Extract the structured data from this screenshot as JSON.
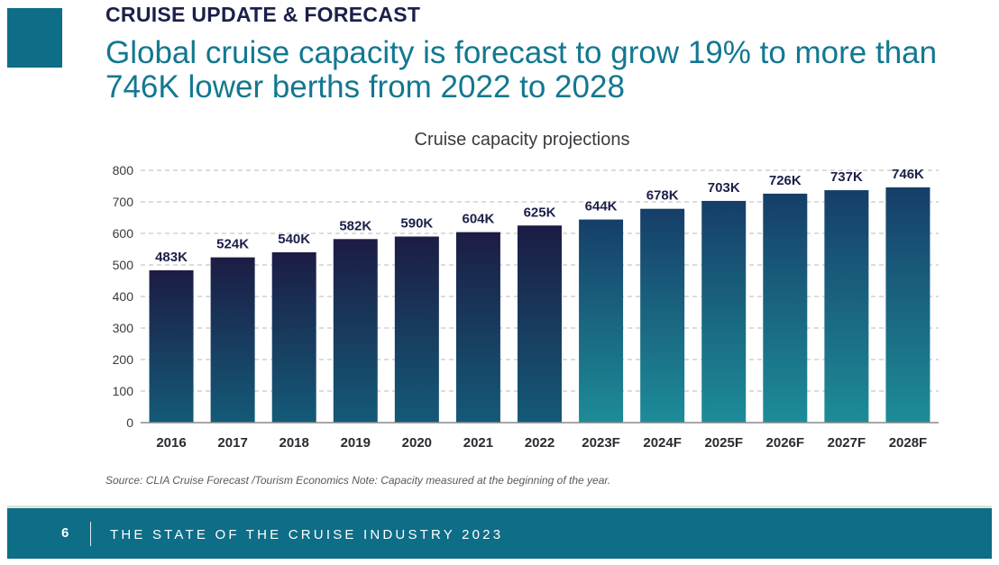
{
  "header": {
    "section_label": "CRUISE UPDATE & FORECAST",
    "headline": "Global cruise capacity is forecast to grow 19% to more than 746K lower berths from 2022 to 2028"
  },
  "source_note": "Source: CLIA Cruise Forecast /Tourism Economics Note: Capacity measured at the beginning of the year.",
  "footer": {
    "page_number": "6",
    "title": "THE STATE OF THE CRUISE INDUSTRY 2023"
  },
  "colors": {
    "brand": "#0e6d87",
    "navy_text": "#1c1f4a",
    "headline": "#127890",
    "actual_bar_top": "#1c1c44",
    "actual_bar_bottom": "#145a78",
    "forecast_bar_top": "#163e68",
    "forecast_bar_bottom": "#1d8c98"
  },
  "chart_data": {
    "type": "bar",
    "title": "Cruise capacity projections",
    "xlabel": "",
    "ylabel": "",
    "ylim": [
      0,
      800
    ],
    "yticks": [
      0,
      100,
      200,
      300,
      400,
      500,
      600,
      700,
      800
    ],
    "grid": true,
    "categories": [
      "2016",
      "2017",
      "2018",
      "2019",
      "2020",
      "2021",
      "2022",
      "2023F",
      "2024F",
      "2025F",
      "2026F",
      "2027F",
      "2028F"
    ],
    "values": [
      483,
      524,
      540,
      582,
      590,
      604,
      625,
      644,
      678,
      703,
      726,
      737,
      746
    ],
    "data_labels": [
      "483K",
      "524K",
      "540K",
      "582K",
      "590K",
      "604K",
      "625K",
      "644K",
      "678K",
      "703K",
      "726K",
      "737K",
      "746K"
    ],
    "forecast": [
      false,
      false,
      false,
      false,
      false,
      false,
      false,
      true,
      true,
      true,
      true,
      true,
      true
    ]
  }
}
